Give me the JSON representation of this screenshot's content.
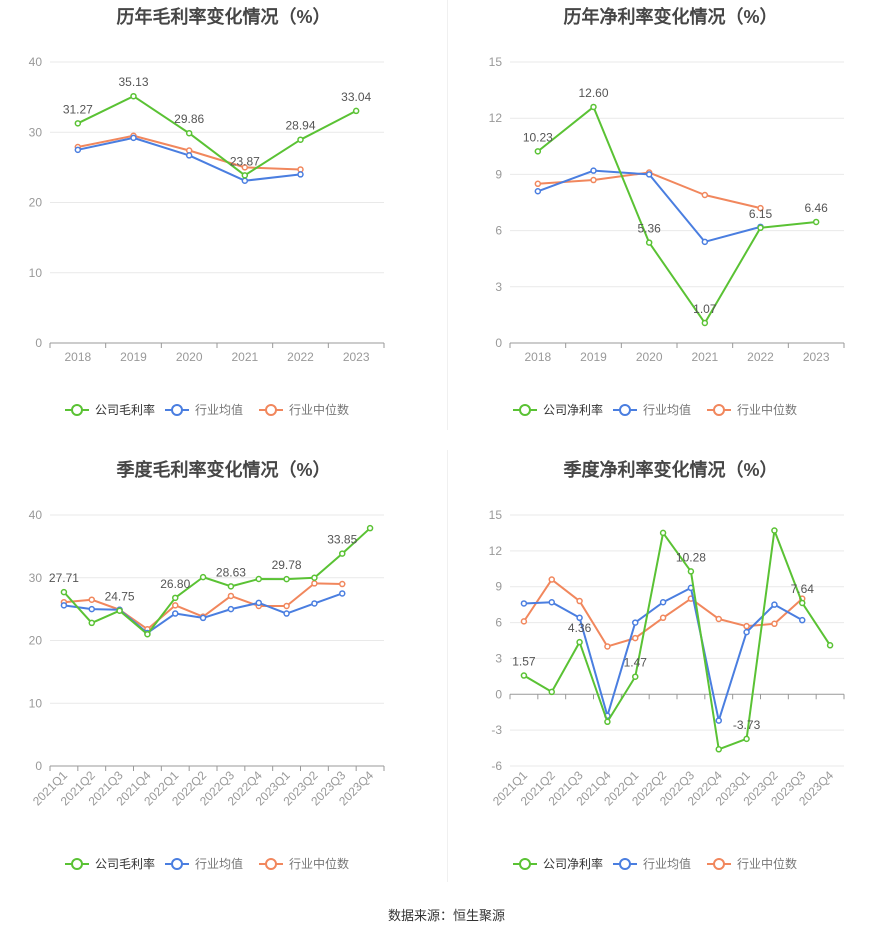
{
  "footer": {
    "source": "数据来源：恒生聚源"
  },
  "colors": {
    "company": "#5ac234",
    "avg": "#4a7ee0",
    "median": "#f1875d"
  },
  "chart_data": [
    {
      "id": "annual-gross",
      "type": "line",
      "title": "历年毛利率变化情况（%）",
      "categories": [
        "2018",
        "2019",
        "2020",
        "2021",
        "2022",
        "2023"
      ],
      "ylim": [
        0,
        40
      ],
      "yticks": [
        0,
        10,
        20,
        30,
        40
      ],
      "series": [
        {
          "key": "company",
          "name": "公司毛利率",
          "values": [
            31.27,
            35.13,
            29.86,
            23.87,
            28.94,
            33.04
          ],
          "labels": [
            "31.27",
            "35.13",
            "29.86",
            "23.87",
            "28.94",
            "33.04"
          ]
        },
        {
          "key": "avg",
          "name": "行业均值",
          "values": [
            27.5,
            29.2,
            26.7,
            23.1,
            24.0,
            null
          ]
        },
        {
          "key": "median",
          "name": "行业中位数",
          "values": [
            27.9,
            29.5,
            27.4,
            25.0,
            24.7,
            null
          ]
        }
      ]
    },
    {
      "id": "annual-net",
      "type": "line",
      "title": "历年净利率变化情况（%）",
      "categories": [
        "2018",
        "2019",
        "2020",
        "2021",
        "2022",
        "2023"
      ],
      "ylim": [
        0,
        15
      ],
      "yticks": [
        0,
        3,
        6,
        9,
        12,
        15
      ],
      "series": [
        {
          "key": "company",
          "name": "公司净利率",
          "values": [
            10.23,
            12.6,
            5.36,
            1.07,
            6.15,
            6.46
          ],
          "labels": [
            "10.23",
            "12.60",
            "5.36",
            "1.07",
            "6.15",
            "6.46"
          ]
        },
        {
          "key": "avg",
          "name": "行业均值",
          "values": [
            8.1,
            9.2,
            9.0,
            5.4,
            6.2,
            null
          ]
        },
        {
          "key": "median",
          "name": "行业中位数",
          "values": [
            8.5,
            8.7,
            9.1,
            7.9,
            7.2,
            null
          ]
        }
      ]
    },
    {
      "id": "quarter-gross",
      "type": "line",
      "title": "季度毛利率变化情况（%）",
      "categories": [
        "2021Q1",
        "2021Q2",
        "2021Q3",
        "2021Q4",
        "2022Q1",
        "2022Q2",
        "2022Q3",
        "2022Q4",
        "2023Q1",
        "2023Q2",
        "2023Q3",
        "2023Q4"
      ],
      "ylim": [
        0,
        40
      ],
      "yticks": [
        0,
        10,
        20,
        30,
        40
      ],
      "series": [
        {
          "key": "company",
          "name": "公司毛利率",
          "values": [
            27.71,
            22.8,
            24.75,
            21.0,
            26.8,
            30.1,
            28.63,
            29.8,
            29.78,
            30.0,
            33.85,
            37.9
          ],
          "labels": [
            "27.71",
            null,
            "24.75",
            null,
            "26.80",
            null,
            "28.63",
            null,
            "29.78",
            null,
            "33.85",
            null
          ]
        },
        {
          "key": "avg",
          "name": "行业均值",
          "values": [
            25.6,
            25.0,
            24.9,
            21.2,
            24.3,
            23.6,
            25.0,
            26.0,
            24.3,
            25.9,
            27.5,
            null
          ]
        },
        {
          "key": "median",
          "name": "行业中位数",
          "values": [
            26.1,
            26.5,
            24.9,
            21.8,
            25.6,
            23.8,
            27.1,
            25.5,
            25.5,
            29.1,
            29.0,
            null
          ]
        }
      ]
    },
    {
      "id": "quarter-net",
      "type": "line",
      "title": "季度净利率变化情况（%）",
      "categories": [
        "2021Q1",
        "2021Q2",
        "2021Q3",
        "2021Q4",
        "2022Q1",
        "2022Q2",
        "2022Q3",
        "2022Q4",
        "2023Q1",
        "2023Q2",
        "2023Q3",
        "2023Q4"
      ],
      "ylim": [
        -6,
        15
      ],
      "yticks": [
        -6,
        -3,
        0,
        3,
        6,
        9,
        12,
        15
      ],
      "series": [
        {
          "key": "company",
          "name": "公司净利率",
          "values": [
            1.57,
            0.2,
            4.36,
            -2.3,
            1.47,
            13.5,
            10.28,
            -4.6,
            -3.73,
            13.7,
            7.64,
            4.1
          ],
          "labels": [
            "1.57",
            null,
            "4.36",
            null,
            "1.47",
            null,
            "10.28",
            null,
            "-3.73",
            null,
            "7.64",
            null
          ]
        },
        {
          "key": "avg",
          "name": "行业均值",
          "values": [
            7.6,
            7.7,
            6.4,
            -1.8,
            6.0,
            7.7,
            8.9,
            -2.2,
            5.2,
            7.5,
            6.2,
            null
          ]
        },
        {
          "key": "median",
          "name": "行业中位数",
          "values": [
            6.1,
            9.6,
            7.8,
            4.0,
            4.7,
            6.4,
            8.0,
            6.3,
            5.7,
            5.9,
            8.0,
            null
          ]
        }
      ]
    }
  ]
}
